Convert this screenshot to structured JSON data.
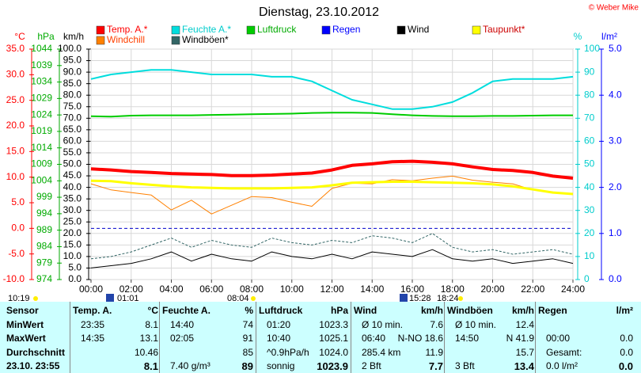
{
  "chart_data": {
    "type": "line",
    "title": "Dienstag, 23.10.2012",
    "copyright": "© Weber Mike",
    "grid": true,
    "freezing_line": true,
    "x": [
      0,
      1,
      2,
      3,
      4,
      5,
      6,
      7,
      8,
      9,
      10,
      11,
      12,
      13,
      14,
      15,
      16,
      17,
      18,
      19,
      20,
      21,
      22,
      23,
      24
    ],
    "xlim": [
      0,
      24
    ],
    "xticks": [
      {
        "value": 0,
        "label": "00:00"
      },
      {
        "value": 2,
        "label": "02:00"
      },
      {
        "value": 4,
        "label": "04:00"
      },
      {
        "value": 6,
        "label": "06:00"
      },
      {
        "value": 8,
        "label": "08:00"
      },
      {
        "value": 10,
        "label": "10:00"
      },
      {
        "value": 12,
        "label": "12:00"
      },
      {
        "value": 14,
        "label": "14:00"
      },
      {
        "value": 16,
        "label": "16:00"
      },
      {
        "value": 18,
        "label": "18:00"
      },
      {
        "value": 20,
        "label": "20:00"
      },
      {
        "value": 22,
        "label": "22:00"
      },
      {
        "value": 24,
        "label": "24:00"
      }
    ],
    "axes": [
      {
        "label": "°C",
        "color": "#ff0000",
        "side": "left",
        "lim": [
          -10,
          35
        ],
        "ticks": [
          {
            "value": 35,
            "label": "35.0"
          },
          {
            "value": 30,
            "label": "30.0"
          },
          {
            "value": 25,
            "label": "25.0"
          },
          {
            "value": 20,
            "label": "20.0"
          },
          {
            "value": 15,
            "label": "15.0"
          },
          {
            "value": 10,
            "label": "10.0"
          },
          {
            "value": 5,
            "label": "5.0"
          },
          {
            "value": 0,
            "label": "0.0"
          },
          {
            "value": -5,
            "label": "-5.0"
          },
          {
            "value": -10,
            "label": "-10.0"
          }
        ]
      },
      {
        "label": "hPa",
        "color": "#00aa00",
        "side": "left",
        "lim": [
          974,
          1044
        ],
        "ticks": [
          1044,
          1039,
          1034,
          1029,
          1024,
          1019,
          1014,
          1009,
          1004,
          999,
          994,
          989,
          984,
          979,
          974
        ]
      },
      {
        "label": "km/h",
        "color": "#000000",
        "side": "left",
        "lim": [
          0,
          100
        ],
        "grid": true,
        "ticks": [
          {
            "value": 100,
            "label": "100.0"
          },
          {
            "value": 95,
            "label": "95.0"
          },
          {
            "value": 90,
            "label": "90.0"
          },
          {
            "value": 85,
            "label": "85.0"
          },
          {
            "value": 80,
            "label": "80.0"
          },
          {
            "value": 75,
            "label": "75.0"
          },
          {
            "value": 70,
            "label": "70.0"
          },
          {
            "value": 65,
            "label": "65.0"
          },
          {
            "value": 60,
            "label": "60.0"
          },
          {
            "value": 55,
            "label": "55.0"
          },
          {
            "value": 50,
            "label": "50.0"
          },
          {
            "value": 45,
            "label": "45.0"
          },
          {
            "value": 40,
            "label": "40.0"
          },
          {
            "value": 35,
            "label": "35.0"
          },
          {
            "value": 30,
            "label": "30.0"
          },
          {
            "value": 25,
            "label": "25.0"
          },
          {
            "value": 20,
            "label": "20.0"
          },
          {
            "value": 15,
            "label": "15.0"
          },
          {
            "value": 10,
            "label": "10.0"
          },
          {
            "value": 5,
            "label": "5.0"
          },
          {
            "value": 0,
            "label": "0.0"
          }
        ]
      },
      {
        "label": "%",
        "color": "#00cccc",
        "side": "right",
        "lim": [
          0,
          100
        ],
        "ticks": [
          100,
          90,
          80,
          70,
          60,
          50,
          40,
          30,
          20,
          10,
          0
        ]
      },
      {
        "label": "l/m²",
        "color": "#0000ff",
        "side": "right",
        "lim": [
          0,
          5
        ],
        "ticks": [
          {
            "value": 5,
            "label": "5.0"
          },
          {
            "value": 4,
            "label": "4.0"
          },
          {
            "value": 3,
            "label": "3.0"
          },
          {
            "value": 2,
            "label": "2.0"
          },
          {
            "value": 1,
            "label": "1.0"
          },
          {
            "value": 0,
            "label": "0.0"
          }
        ]
      }
    ],
    "series": [
      {
        "name": "Temp. A.*",
        "color": "#ff0000",
        "text_color": "#ff0000",
        "width": 4,
        "axis": 0,
        "values": [
          11.6,
          11.4,
          11.1,
          10.9,
          10.7,
          10.6,
          10.5,
          10.3,
          10.3,
          10.4,
          10.6,
          10.8,
          11.4,
          12.3,
          12.6,
          13.0,
          13.1,
          12.9,
          12.6,
          12.0,
          11.5,
          11.3,
          10.9,
          10.2,
          9.8
        ]
      },
      {
        "name": "Feuchte A.*",
        "color": "#00dddd",
        "text_color": "#00cccc",
        "width": 2,
        "axis": 3,
        "values": [
          87,
          89,
          90,
          91,
          91,
          90,
          89,
          89,
          89,
          88,
          88,
          86,
          82,
          78,
          76,
          74,
          74,
          75,
          77,
          81,
          86,
          87,
          87,
          87,
          88
        ]
      },
      {
        "name": "Luftdruck",
        "color": "#00cc00",
        "text_color": "#00aa00",
        "width": 2,
        "axis": 1,
        "values": [
          1023.6,
          1023.5,
          1023.8,
          1023.9,
          1023.9,
          1023.9,
          1024.0,
          1024.1,
          1024.2,
          1024.3,
          1024.4,
          1024.6,
          1024.7,
          1024.7,
          1024.6,
          1024.2,
          1023.9,
          1023.7,
          1023.6,
          1023.6,
          1023.7,
          1023.7,
          1023.8,
          1023.9,
          1023.9
        ]
      },
      {
        "name": "Regen",
        "color": "#0000ff",
        "text_color": "#0000ff",
        "width": 2,
        "axis": 4,
        "values": [
          null,
          null,
          null,
          null,
          null,
          null,
          null,
          null,
          null,
          null,
          null,
          null,
          null,
          null,
          null,
          null,
          null,
          null,
          null,
          null,
          null,
          null,
          null,
          null,
          null
        ]
      },
      {
        "name": "Wind",
        "color": "#000000",
        "text_color": "#000000",
        "width": 1,
        "axis": 2,
        "values": [
          5,
          6,
          7,
          9,
          12,
          8,
          11,
          9,
          8,
          12,
          10,
          9,
          11,
          9,
          12,
          11,
          10,
          13,
          9,
          8,
          9,
          7,
          8,
          9,
          7
        ]
      },
      {
        "name": "Taupunkt*",
        "color": "#ffff00",
        "text_color": "#cc0000",
        "width": 3,
        "axis": 0,
        "values": [
          9.3,
          9.2,
          8.8,
          8.5,
          8.2,
          8.0,
          7.9,
          7.8,
          7.8,
          7.8,
          7.9,
          8.0,
          8.4,
          8.9,
          9.0,
          9.1,
          9.1,
          9.0,
          8.9,
          8.8,
          8.6,
          8.2,
          7.6,
          7.0,
          6.7
        ]
      },
      {
        "name": "Windchill",
        "color": "#ff8000",
        "text_color": "#ff4000",
        "width": 1,
        "axis": 0,
        "values": [
          8.7,
          7.5,
          7.0,
          6.5,
          3.6,
          5.5,
          2.8,
          4.5,
          6.2,
          6.0,
          5.1,
          4.3,
          7.8,
          8.8,
          8.7,
          9.5,
          9.3,
          9.8,
          10.2,
          9.4,
          9.0,
          8.7,
          7.5,
          7.1,
          6.7
        ]
      },
      {
        "name": "Windböen*",
        "color": "#336666",
        "text_color": "#000000",
        "width": 1,
        "dashed": true,
        "axis": 2,
        "values": [
          9,
          10,
          12,
          15,
          18,
          14,
          17,
          15,
          14,
          18,
          16,
          15,
          17,
          16,
          19,
          18,
          16,
          20,
          14,
          12,
          13,
          11,
          12,
          13,
          11
        ]
      }
    ],
    "events": [
      "10:19",
      "01:01",
      "08:04",
      "15:28",
      "18:24"
    ]
  },
  "table": {
    "header": [
      "Sensor",
      [
        "Temp. A.",
        "°C"
      ],
      [
        "Feuchte A.",
        "%"
      ],
      [
        "Luftdruck",
        "hPa"
      ],
      [
        "Wind",
        "km/h"
      ],
      [
        "Windböen",
        "km/h"
      ],
      [
        "Regen",
        "l/m²"
      ]
    ],
    "rows": [
      {
        "label": "MinWert",
        "cells": [
          [
            "23:35",
            "8.1"
          ],
          [
            "14:40",
            "74"
          ],
          [
            "01:20",
            "1023.3"
          ],
          [
            "Ø 10 min.",
            "7.6"
          ],
          [
            "Ø 10 min.",
            "12.4"
          ],
          [
            null,
            null
          ]
        ]
      },
      {
        "label": "MaxWert",
        "cells": [
          [
            "14:35",
            "13.1"
          ],
          [
            "02:05",
            "91"
          ],
          [
            "10:40",
            "1025.1"
          ],
          [
            "06:40",
            "N-NO 18.6"
          ],
          [
            "14:50",
            "N 41.9"
          ],
          [
            "00:00",
            "0.0"
          ]
        ]
      },
      {
        "label": "Durchschnitt",
        "cells": [
          [
            null,
            "10.46"
          ],
          [
            null,
            "85"
          ],
          [
            "^0.9hPa/h",
            "1024.0"
          ],
          [
            "285.4 km",
            "11.9"
          ],
          [
            null,
            "15.7"
          ],
          [
            "Gesamt:",
            "0.0"
          ]
        ]
      },
      {
        "label": "23.10. 23:55",
        "cells": [
          [
            null,
            "8.1"
          ],
          [
            "7.40 g/m³",
            "89"
          ],
          [
            "sonnig",
            "1023.9"
          ],
          [
            "2 Bft",
            "7.7"
          ],
          [
            "3 Bft",
            "13.4"
          ],
          [
            "0.0 l/m²",
            "0.0"
          ]
        ]
      }
    ]
  }
}
